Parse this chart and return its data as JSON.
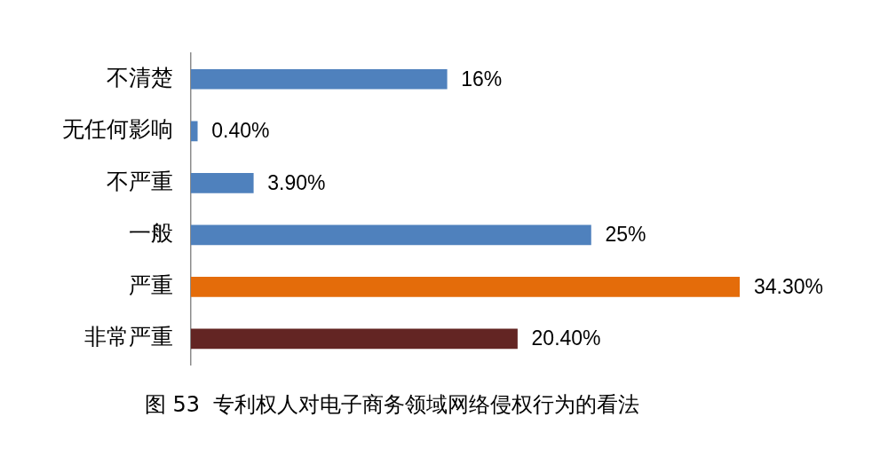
{
  "chart_data": {
    "type": "bar",
    "orientation": "horizontal",
    "title": "图 53  专利权人对电子商务领域网络侵权行为的看法",
    "categories": [
      "不清楚",
      "无任何影响",
      "不严重",
      "一般",
      "严重",
      "非常严重"
    ],
    "values": [
      16,
      0.4,
      3.9,
      25,
      34.3,
      20.4
    ],
    "value_labels": [
      "16%",
      "0.40%",
      "3.90%",
      "25%",
      "34.30%",
      "20.40%"
    ],
    "colors": [
      "#4f81bd",
      "#4f81bd",
      "#4f81bd",
      "#4f81bd",
      "#e46c0a",
      "#632523"
    ]
  }
}
